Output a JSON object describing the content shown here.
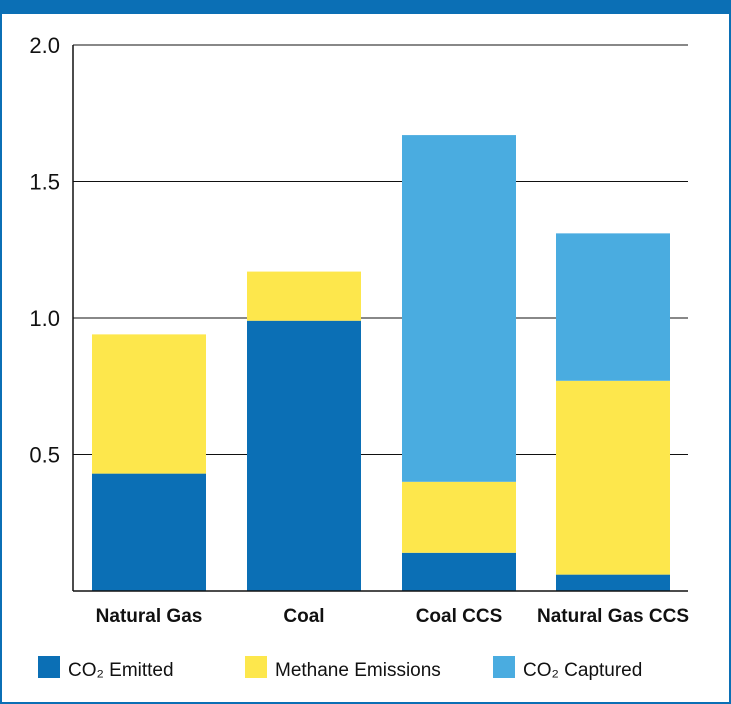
{
  "chart_data": {
    "type": "bar",
    "stacked": true,
    "categories": [
      "Natural Gas",
      "Coal",
      "Coal CCS",
      "Natural Gas CCS"
    ],
    "series": [
      {
        "name": "CO₂ Emitted",
        "color": "#0b6fb5",
        "values": [
          0.43,
          0.99,
          0.14,
          0.06
        ]
      },
      {
        "name": "Methane Emissions",
        "color": "#fde74c",
        "values": [
          0.51,
          0.18,
          0.26,
          0.71
        ]
      },
      {
        "name": "CO₂ Captured",
        "color": "#4aace0",
        "values": [
          0.0,
          0.0,
          1.27,
          0.54
        ]
      }
    ],
    "yticks": [
      "0.5",
      "1.0",
      "1.5",
      "2.0"
    ],
    "ylim": [
      0,
      2.0
    ],
    "grid": true,
    "legend_position": "bottom"
  }
}
